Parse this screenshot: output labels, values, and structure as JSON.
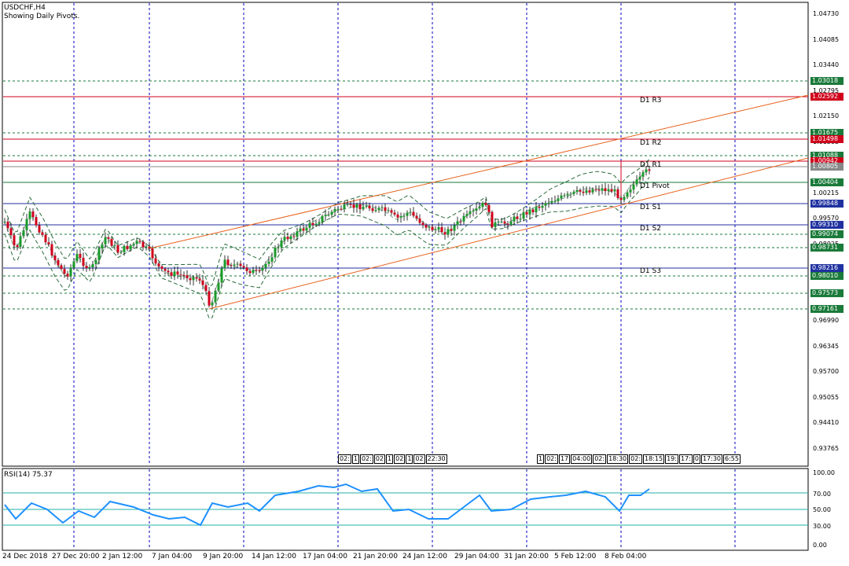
{
  "chart": {
    "symbol_title": "USDCHF,H4",
    "subtitle": "Showing Daily Pivots.",
    "rsi_title": "RSI(14) 75.37"
  },
  "price_axis": [
    "1.04730",
    "1.04085",
    "1.03440",
    "1.02795",
    "1.02150",
    "1.01505",
    "1.00860",
    "1.00215",
    "0.99570",
    "0.98925",
    "0.98280",
    "0.97635",
    "0.96990",
    "0.96345",
    "0.95700",
    "0.95055",
    "0.94410",
    "0.93765"
  ],
  "rsi_axis": [
    "100.00",
    "70.00",
    "50.00",
    "30.00",
    "0.00"
  ],
  "price_boxes": [
    {
      "label": "1.03018",
      "color": "#1a7a3a"
    },
    {
      "label": "1.02592",
      "color": "#d0021b"
    },
    {
      "label": "1.01675",
      "color": "#1a7a3a"
    },
    {
      "label": "1.01498",
      "color": "#d0021b"
    },
    {
      "label": "1.01088",
      "color": "#1a7a3a"
    },
    {
      "label": "1.00942",
      "color": "#d0021b"
    },
    {
      "label": "1.00805",
      "color": "#888888"
    },
    {
      "label": "1.00404",
      "color": "#1a7a3a"
    },
    {
      "label": "0.99848",
      "color": "#2032a0"
    },
    {
      "label": "0.99310",
      "color": "#2032a0"
    },
    {
      "label": "0.99074",
      "color": "#1a7a3a"
    },
    {
      "label": "0.98731",
      "color": "#1a7a3a"
    },
    {
      "label": "0.98216",
      "color": "#2032a0"
    },
    {
      "label": "0.98010",
      "color": "#1a7a3a"
    },
    {
      "label": "0.97573",
      "color": "#1a7a3a"
    },
    {
      "label": "0.97161",
      "color": "#1a7a3a"
    }
  ],
  "pivot_labels": [
    "D1 R3",
    "D1 R2",
    "D1 R1",
    "D1 Pivot",
    "D1 S1",
    "D1 S2",
    "D1 S3"
  ],
  "x_axis": [
    "24 Dec 2018",
    "27 Dec 20:00",
    "2 Jan 12:00",
    "7 Jan 04:00",
    "9 Jan 20:00",
    "14 Jan 12:00",
    "17 Jan 04:00",
    "21 Jan 20:00",
    "24 Jan 12:00",
    "29 Jan 04:00",
    "31 Jan 20:00",
    "5 Feb 12:00",
    "8 Feb 04:00"
  ],
  "time_boxes_left": [
    "02:",
    "1",
    "02:",
    "02",
    "1",
    "02",
    "1",
    "02",
    "22:30"
  ],
  "time_boxes_right": [
    "1",
    "02:",
    "17",
    "04:00",
    "02:",
    "18:30",
    "02:",
    "18:15",
    "19:",
    "17:",
    "0",
    "17:30",
    "6:55"
  ],
  "colors": {
    "candle_up": "#1a9a2a",
    "candle_down": "#d0021b",
    "channel": "#e8601c",
    "grid": "#0000c0",
    "rsi_line": "#1e90ff",
    "bollinger": "#2a6a3a"
  }
}
